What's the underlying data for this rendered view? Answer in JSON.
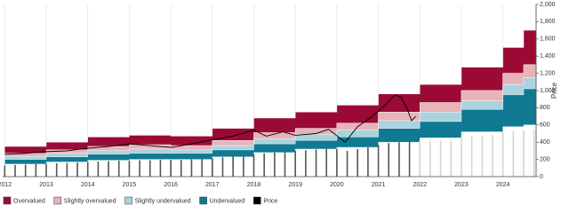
{
  "chart_data": {
    "type": "valuation-band",
    "y_label": "Price",
    "xlim": [
      2011.95,
      2024.8
    ],
    "xticks": [
      2012,
      2013,
      2014,
      2015,
      2016,
      2017,
      2018,
      2019,
      2020,
      2021,
      2022,
      2023,
      2024
    ],
    "ylim": [
      0,
      2000
    ],
    "yticks": [
      0,
      200,
      400,
      600,
      800,
      {
        "value": 1000,
        "label": "1,000"
      },
      {
        "value": 1200,
        "label": "1,200"
      },
      {
        "value": 1400,
        "label": "1,400"
      },
      {
        "value": 1600,
        "label": "1,600"
      },
      {
        "value": 1800,
        "label": "1,800"
      },
      {
        "value": 2000,
        "label": "2,000"
      }
    ],
    "grid": true,
    "legend": "bottom-left",
    "x": [
      2012,
      2013,
      2014,
      2015,
      2016,
      2017,
      2018,
      2019,
      2020,
      2021,
      2022,
      2023,
      2024,
      2024.5
    ],
    "series": [
      {
        "name": "Overvalued",
        "color": "#9b0a35",
        "low": [
          270,
          310,
          350,
          370,
          360,
          420,
          510,
          560,
          620,
          750,
          860,
          1000,
          1200,
          1300
        ],
        "high": [
          350,
          400,
          460,
          480,
          470,
          560,
          680,
          750,
          830,
          960,
          1070,
          1270,
          1500,
          1700
        ]
      },
      {
        "name": "Slightly overvalued",
        "color": "#e8b3b8",
        "low": [
          235,
          270,
          300,
          320,
          310,
          360,
          440,
          490,
          540,
          650,
          750,
          880,
          1070,
          1150
        ],
        "high": [
          270,
          310,
          350,
          370,
          360,
          420,
          510,
          560,
          620,
          750,
          860,
          1000,
          1200,
          1300
        ]
      },
      {
        "name": "Slightly undervalued",
        "color": "#a9d3df",
        "low": [
          200,
          230,
          260,
          270,
          270,
          310,
          380,
          420,
          460,
          560,
          640,
          780,
          950,
          1020
        ],
        "high": [
          235,
          270,
          300,
          320,
          310,
          360,
          440,
          490,
          540,
          650,
          750,
          880,
          1070,
          1150
        ]
      },
      {
        "name": "Undervalued",
        "color": "#0f7a92",
        "low": [
          145,
          170,
          190,
          200,
          200,
          230,
          280,
          320,
          340,
          400,
          450,
          520,
          580,
          600
        ],
        "high": [
          200,
          230,
          260,
          270,
          270,
          310,
          380,
          420,
          460,
          560,
          640,
          780,
          950,
          1020
        ]
      },
      {
        "name": "Price",
        "color": "#000000",
        "x": [
          2012,
          2012.5,
          2013,
          2013.5,
          2014,
          2014.5,
          2015,
          2015.5,
          2016,
          2016.5,
          2017,
          2017.5,
          2018,
          2018.3,
          2018.7,
          2019,
          2019.5,
          2019.8,
          2020.2,
          2020.5,
          2020.8,
          2021,
          2021.2,
          2021.4,
          2021.55,
          2021.7,
          2021.8,
          2021.9
        ],
        "values": [
          260,
          270,
          290,
          300,
          330,
          350,
          380,
          360,
          340,
          380,
          430,
          470,
          540,
          470,
          520,
          480,
          500,
          550,
          400,
          580,
          680,
          760,
          850,
          950,
          920,
          780,
          650,
          700
        ]
      }
    ],
    "bars": [
      {
        "color": "#555555",
        "x": [
          2012,
          2012.25,
          2012.5,
          2012.75,
          2013,
          2013.25,
          2013.5,
          2013.75,
          2014,
          2014.25,
          2014.5,
          2014.75,
          2015,
          2015.25,
          2015.5,
          2015.75,
          2016,
          2016.25,
          2016.5,
          2016.75,
          2017,
          2017.25,
          2017.5,
          2017.75,
          2018,
          2018.25,
          2018.5,
          2018.75,
          2019,
          2019.25,
          2019.5,
          2019.75,
          2020,
          2020.25,
          2020.5,
          2020.75,
          2021,
          2021.25,
          2021.5,
          2021.75
        ],
        "values": [
          130,
          135,
          140,
          145,
          150,
          155,
          160,
          165,
          170,
          175,
          180,
          185,
          185,
          190,
          190,
          195,
          195,
          195,
          200,
          205,
          215,
          225,
          235,
          245,
          260,
          270,
          280,
          290,
          300,
          305,
          315,
          320,
          320,
          300,
          320,
          340,
          370,
          390,
          400,
          410
        ]
      },
      {
        "color": "#d4d4d4",
        "x": [
          2022,
          2022.25,
          2022.5,
          2022.75,
          2023,
          2023.25,
          2023.5,
          2023.75,
          2024,
          2024.25,
          2024.5,
          2024.75
        ],
        "values": [
          420,
          420,
          420,
          420,
          460,
          470,
          480,
          490,
          520,
          530,
          540,
          550
        ]
      }
    ]
  }
}
